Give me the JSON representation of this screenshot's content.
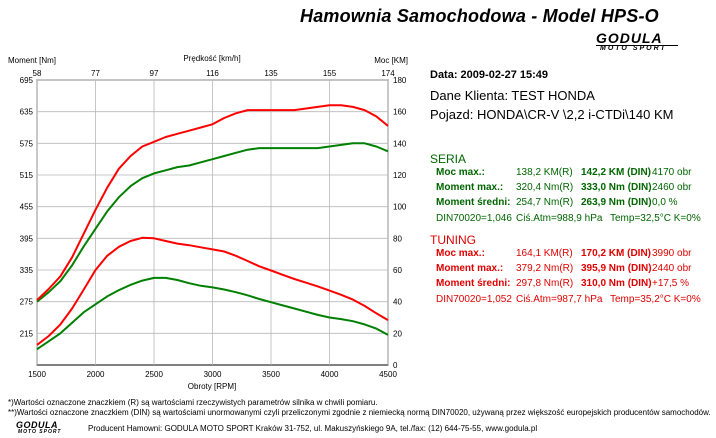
{
  "header": {
    "title": "Hamownia Samochodowa   -   Model HPS-O",
    "logo_text": "GODULA",
    "logo_sub": "MOTO SPORT"
  },
  "info": {
    "date": "Data: 2009-02-27  15:49",
    "client": "Dane Klienta: TEST HONDA",
    "vehicle": "Pojazd: HONDA\\CR-V \\2,2 i-CTDi\\140 KM"
  },
  "seria": {
    "heading": "SERIA",
    "rows": [
      {
        "label": "Moc max.:",
        "r": "138,2 KM(R)",
        "din": "142,2 KM (DIN)",
        "extra": "4170 obr"
      },
      {
        "label": "Moment max.:",
        "r": "320,4 Nm(R)",
        "din": "333,0 Nm (DIN)",
        "extra": "2460 obr"
      },
      {
        "label": "Moment średni:",
        "r": "254,7 Nm(R)",
        "din": "263,9 Nm (DIN)",
        "extra": "0,0 %"
      }
    ],
    "cond": {
      "din": "DIN70020=1,046",
      "atm": "Ciś.Atm=988,9 hPa",
      "temp": "Temp=32,5°C  K=0%"
    }
  },
  "tuning": {
    "heading": "TUNING",
    "rows": [
      {
        "label": "Moc max.:",
        "r": "164,1 KM(R)",
        "din": "170,2 KM (DIN)",
        "extra": "3990 obr"
      },
      {
        "label": "Moment max.:",
        "r": "379,2 Nm(R)",
        "din": "395,9 Nm (DIN)",
        "extra": "2440 obr"
      },
      {
        "label": "Moment średni:",
        "r": "297,8 Nm(R)",
        "din": "310,0 Nm (DIN)",
        "extra": "+17,5 %"
      }
    ],
    "cond": {
      "din": "DIN70020=1,052",
      "atm": "Ciś.Atm=987,7 hPa",
      "temp": "Temp=35,2°C  K=0%"
    }
  },
  "footnotes": {
    "f1": "*)Wartości oznaczone znaczkiem (R) są wartościami rzeczywistych parametrów silnika w chwili pomiaru.",
    "f2": "**)Wartości oznaczone znaczkiem (DIN) są wartościami unormowanymi czyli przeliczonymi zgodnie z niemiecką normą DIN70020, używaną przez większość europejskich producentów samochodów.",
    "producer": "Producent Hamowni: GODULA MOTO SPORT Kraków 31-752, ul. Makuszyńskiego 9A, tel./fax: (12) 644-75-55, www.godula.pl"
  },
  "chart_data": {
    "type": "line",
    "xlabel": "Obroty [RPM]",
    "x_top_label": "Prędkość [km/h]",
    "y_left_label": "Moment [Nm]",
    "y_right_label": "Moc [KM]",
    "xlim": [
      1500,
      4500
    ],
    "y_left_lim": [
      155,
      695
    ],
    "y_right_lim": [
      0,
      180
    ],
    "x_ticks": [
      1500,
      2000,
      2500,
      3000,
      3500,
      4000,
      4500
    ],
    "x_top_ticks": [
      "58",
      "77",
      "97",
      "116",
      "135",
      "155",
      "174"
    ],
    "y_left_ticks": [
      215,
      275,
      335,
      395,
      455,
      515,
      575,
      635,
      695
    ],
    "y_right_ticks": [
      0,
      20,
      40,
      60,
      80,
      100,
      120,
      140,
      160,
      180
    ],
    "grid": true,
    "colors": {
      "seria": "#008000",
      "tuning": "#ff0000"
    },
    "series": [
      {
        "axis": "right",
        "x": [
          1500,
          1600,
          1700,
          1800,
          1900,
          2000,
          2100,
          2200,
          2300,
          2400,
          2500,
          2600,
          2700,
          2800,
          2900,
          3000,
          3100,
          3200,
          3300,
          3400,
          3500,
          3600,
          3700,
          3800,
          3900,
          4000,
          4100,
          4200,
          4300,
          4400,
          4500
        ],
        "values": [
          40,
          46,
          53,
          63,
          75,
          86,
          97,
          106,
          113,
          118,
          121,
          123,
          125,
          126,
          128,
          130,
          132,
          134,
          136,
          137,
          137,
          137,
          137,
          137,
          137,
          138,
          139,
          140,
          140,
          138,
          135
        ]
      },
      {
        "axis": "right",
        "x": [
          1500,
          1600,
          1700,
          1800,
          1900,
          2000,
          2100,
          2200,
          2300,
          2400,
          2500,
          2600,
          2700,
          2800,
          2900,
          3000,
          3100,
          3200,
          3300,
          3400,
          3500,
          3600,
          3700,
          3800,
          3900,
          4000,
          4100,
          4200,
          4300,
          4400,
          4500
        ],
        "values": [
          41,
          48,
          56,
          68,
          83,
          98,
          112,
          124,
          132,
          138,
          141,
          144,
          146,
          148,
          150,
          152,
          156,
          159,
          161,
          161,
          161,
          161,
          161,
          162,
          163,
          164,
          164,
          163,
          161,
          157,
          151
        ]
      },
      {
        "axis": "left",
        "x": [
          1500,
          1600,
          1700,
          1800,
          1900,
          2000,
          2100,
          2200,
          2300,
          2400,
          2500,
          2600,
          2700,
          2800,
          2900,
          3000,
          3100,
          3200,
          3300,
          3400,
          3500,
          3600,
          3700,
          3800,
          3900,
          4000,
          4100,
          4200,
          4300,
          4400,
          4500
        ],
        "values": [
          185,
          200,
          215,
          235,
          255,
          270,
          285,
          297,
          307,
          315,
          320,
          320,
          316,
          310,
          305,
          302,
          298,
          293,
          287,
          280,
          274,
          268,
          262,
          256,
          250,
          245,
          242,
          238,
          232,
          224,
          212
        ]
      },
      {
        "axis": "left",
        "x": [
          1500,
          1600,
          1700,
          1800,
          1900,
          2000,
          2100,
          2200,
          2300,
          2400,
          2500,
          2600,
          2700,
          2800,
          2900,
          3000,
          3100,
          3200,
          3300,
          3400,
          3500,
          3600,
          3700,
          3800,
          3900,
          4000,
          4100,
          4200,
          4300,
          4400,
          4500
        ],
        "values": [
          193,
          210,
          232,
          262,
          298,
          335,
          362,
          379,
          390,
          396,
          395,
          390,
          385,
          382,
          378,
          374,
          370,
          362,
          352,
          342,
          334,
          326,
          318,
          311,
          304,
          296,
          288,
          279,
          267,
          253,
          240
        ]
      }
    ]
  }
}
